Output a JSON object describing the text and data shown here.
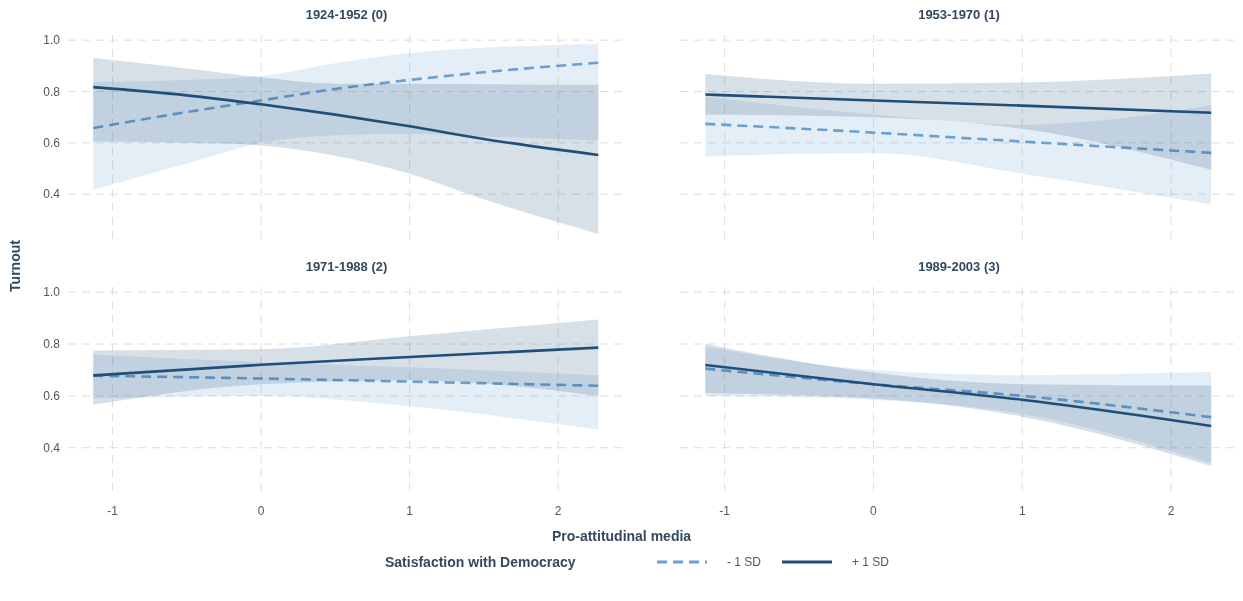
{
  "chart_data": [
    {
      "type": "line",
      "title": "1924-1952 (0)",
      "ylabel": "Turnout",
      "xlim": [
        -1.3,
        2.45
      ],
      "ylim": [
        0.21,
        1.02
      ],
      "xticks": [
        -1,
        0,
        1,
        2
      ],
      "yticks": [
        0.4,
        0.6,
        0.8,
        {
          "value": 1,
          "label": "1.0"
        }
      ],
      "grid": true,
      "tick_labels": "y",
      "series": [
        {
          "color": "#6a9fd0",
          "line_style": "dashed",
          "x": [
            -1.13,
            -0.5,
            0,
            0.5,
            1,
            1.5,
            2.27
          ],
          "values": [
            0.658,
            0.72,
            0.765,
            0.81,
            0.845,
            0.875,
            0.912
          ],
          "lower": [
            0.417,
            0.52,
            0.6,
            0.63,
            0.635,
            0.625,
            0.61
          ],
          "upper": [
            0.837,
            0.845,
            0.86,
            0.91,
            0.95,
            0.97,
            0.985
          ]
        },
        {
          "color": "#1f4e79",
          "line_style": "solid",
          "x": [
            -1.13,
            -0.5,
            0,
            0.5,
            1,
            1.5,
            2.27
          ],
          "values": [
            0.817,
            0.785,
            0.75,
            0.71,
            0.665,
            0.615,
            0.553
          ],
          "lower": [
            0.605,
            0.6,
            0.59,
            0.55,
            0.48,
            0.38,
            0.245
          ],
          "upper": [
            0.93,
            0.89,
            0.855,
            0.83,
            0.83,
            0.828,
            0.826
          ]
        }
      ]
    },
    {
      "type": "line",
      "title": "1953-1970 (1)",
      "xlim": [
        -1.3,
        2.45
      ],
      "ylim": [
        0.21,
        1.02
      ],
      "xticks": [
        -1,
        0,
        1,
        2
      ],
      "yticks": [
        0.4,
        0.6,
        0.8,
        1
      ],
      "grid": true,
      "tick_labels": false,
      "series": [
        {
          "color": "#6a9fd0",
          "line_style": "dashed",
          "x": [
            -1.13,
            0,
            1,
            2.27
          ],
          "values": [
            0.674,
            0.64,
            0.605,
            0.561
          ],
          "lower": [
            0.547,
            0.56,
            0.48,
            0.36
          ],
          "upper": [
            0.78,
            0.71,
            0.67,
            0.745
          ]
        },
        {
          "color": "#1f4e79",
          "line_style": "solid",
          "x": [
            -1.13,
            0,
            1,
            2.27
          ],
          "values": [
            0.788,
            0.765,
            0.745,
            0.717
          ],
          "lower": [
            0.71,
            0.7,
            0.655,
            0.495
          ],
          "upper": [
            0.868,
            0.83,
            0.835,
            0.87
          ]
        }
      ]
    },
    {
      "type": "line",
      "title": "1971-1988 (2)",
      "xlim": [
        -1.3,
        2.45
      ],
      "ylim": [
        0.21,
        1.02
      ],
      "xticks": [
        -1,
        0,
        1,
        2
      ],
      "yticks": [
        0.4,
        0.6,
        0.8,
        {
          "value": 1,
          "label": "1.0"
        }
      ],
      "grid": true,
      "series": [
        {
          "color": "#6a9fd0",
          "line_style": "dashed",
          "x": [
            -1.13,
            0,
            1,
            2.27
          ],
          "values": [
            0.678,
            0.667,
            0.655,
            0.639
          ],
          "lower": [
            0.59,
            0.6,
            0.56,
            0.47
          ],
          "upper": [
            0.76,
            0.73,
            0.71,
            0.68
          ]
        },
        {
          "color": "#1f4e79",
          "line_style": "solid",
          "x": [
            -1.13,
            0,
            1,
            2.27
          ],
          "values": [
            0.679,
            0.72,
            0.75,
            0.786
          ],
          "lower": [
            0.566,
            0.645,
            0.66,
            0.6
          ],
          "upper": [
            0.775,
            0.78,
            0.83,
            0.895
          ]
        }
      ]
    },
    {
      "type": "line",
      "title": "1989-2003 (3)",
      "xlabel": "Pro-attitudinal media",
      "legend_title": "Satisfaction with Democracy",
      "legend": "bottom",
      "xlim": [
        -1.3,
        2.45
      ],
      "ylim": [
        0.21,
        1.02
      ],
      "xticks": [
        -1,
        0,
        1,
        2
      ],
      "yticks": [
        0.4,
        0.6,
        0.8,
        1
      ],
      "grid": true,
      "tick_labels": "x",
      "series": [
        {
          "name": "- 1 SD",
          "color": "#6a9fd0",
          "line_style": "dashed",
          "x": [
            -1.13,
            0,
            1,
            2.27
          ],
          "values": [
            0.705,
            0.645,
            0.6,
            0.518
          ],
          "lower": [
            0.6,
            0.585,
            0.53,
            0.34
          ],
          "upper": [
            0.79,
            0.7,
            0.68,
            0.693
          ]
        },
        {
          "name": "+ 1 SD",
          "color": "#1f4e79",
          "line_style": "solid",
          "x": [
            -1.13,
            0,
            1,
            2.27
          ],
          "values": [
            0.719,
            0.645,
            0.585,
            0.484
          ],
          "lower": [
            0.61,
            0.59,
            0.52,
            0.33
          ],
          "upper": [
            0.8,
            0.69,
            0.645,
            0.64
          ]
        }
      ]
    }
  ]
}
